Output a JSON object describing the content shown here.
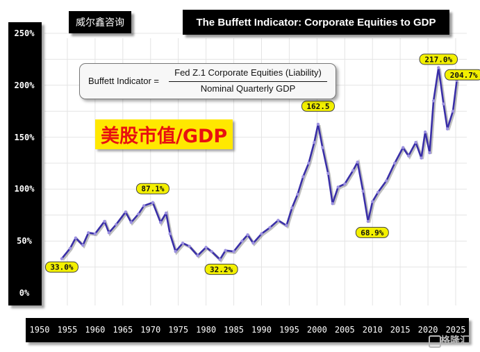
{
  "header": {
    "brand": "威尔鑫咨询",
    "title": "The Buffett Indicator: Corporate Equities to GDP"
  },
  "formula": {
    "left": "Buffett Indicator =",
    "numerator": "Fed Z.1 Corporate Equities (Liability)",
    "denominator": "Nominal Quarterly GDP"
  },
  "overlay_label": "美股市值/GDP",
  "watermark": "格隆汇",
  "colors": {
    "line": "#3a2fa8",
    "marker": "#9b90e0",
    "callout_fill": "#f3f000",
    "callout_text": "#111111",
    "axis_bars": "#000000"
  },
  "chart_data": {
    "type": "line",
    "title": "The Buffett Indicator: Corporate Equities to GDP",
    "xlabel": "",
    "ylabel": "",
    "xlim": [
      1950,
      2027
    ],
    "ylim": [
      0,
      250
    ],
    "grid": true,
    "y_ticks": [
      "0%",
      "50%",
      "100%",
      "150%",
      "200%",
      "250%"
    ],
    "x_ticks": [
      "1950",
      "1955",
      "1960",
      "1965",
      "1970",
      "1975",
      "1980",
      "1985",
      "1990",
      "1995",
      "2000",
      "2005",
      "2010",
      "2015",
      "2020",
      "2025"
    ],
    "series": [
      {
        "x": [
          1954.0,
          1955.5,
          1956.5,
          1957.8,
          1958.8,
          1960.0,
          1961.7,
          1962.5,
          1963.8,
          1965.5,
          1966.5,
          1967.8,
          1968.8,
          1970.4,
          1971.8,
          1972.8,
          1973.5,
          1974.5,
          1975.8,
          1977.0,
          1978.5,
          1980.0,
          1981.0,
          1982.5,
          1983.5,
          1985.0,
          1986.5,
          1987.5,
          1988.5,
          1990.0,
          1991.5,
          1993.0,
          1994.5,
          1995.5,
          1996.5,
          1997.5,
          1998.5,
          1999.5,
          2000.2,
          2001.0,
          2002.0,
          2002.8,
          2003.8,
          2005.0,
          2006.5,
          2007.3,
          2008.3,
          2009.2,
          2010.0,
          2011.0,
          2012.5,
          2014.0,
          2015.5,
          2016.5,
          2017.8,
          2018.8,
          2019.5,
          2020.3,
          2021.0,
          2021.9,
          2022.8,
          2023.5,
          2024.5,
          2025.2
        ],
        "values": [
          33.0,
          43,
          53,
          46,
          58,
          57,
          69,
          58,
          66,
          78,
          68,
          76,
          84,
          87.1,
          68,
          77,
          57,
          40,
          48,
          45,
          36,
          44,
          40,
          32.2,
          41,
          40,
          50,
          56,
          48,
          57,
          63,
          70,
          65,
          82,
          95,
          112,
          125,
          145,
          162.5,
          140,
          115,
          86,
          102,
          105,
          118,
          126,
          98,
          68.9,
          88,
          97,
          108,
          125,
          140,
          132,
          145,
          130,
          155,
          135,
          185,
          217.0,
          182,
          158,
          175,
          204.7
        ]
      }
    ],
    "annotations": [
      {
        "x": 1954.0,
        "y": 33.0,
        "text": "33.0%"
      },
      {
        "x": 1970.4,
        "y": 87.1,
        "text": "87.1%"
      },
      {
        "x": 1982.5,
        "y": 32.2,
        "text": "32.2%"
      },
      {
        "x": 2000.2,
        "y": 162.5,
        "text": "162.5"
      },
      {
        "x": 2009.2,
        "y": 68.9,
        "text": "68.9%"
      },
      {
        "x": 2021.9,
        "y": 217.0,
        "text": "217.0%"
      },
      {
        "x": 2025.2,
        "y": 204.7,
        "text": "204.7%"
      }
    ]
  }
}
